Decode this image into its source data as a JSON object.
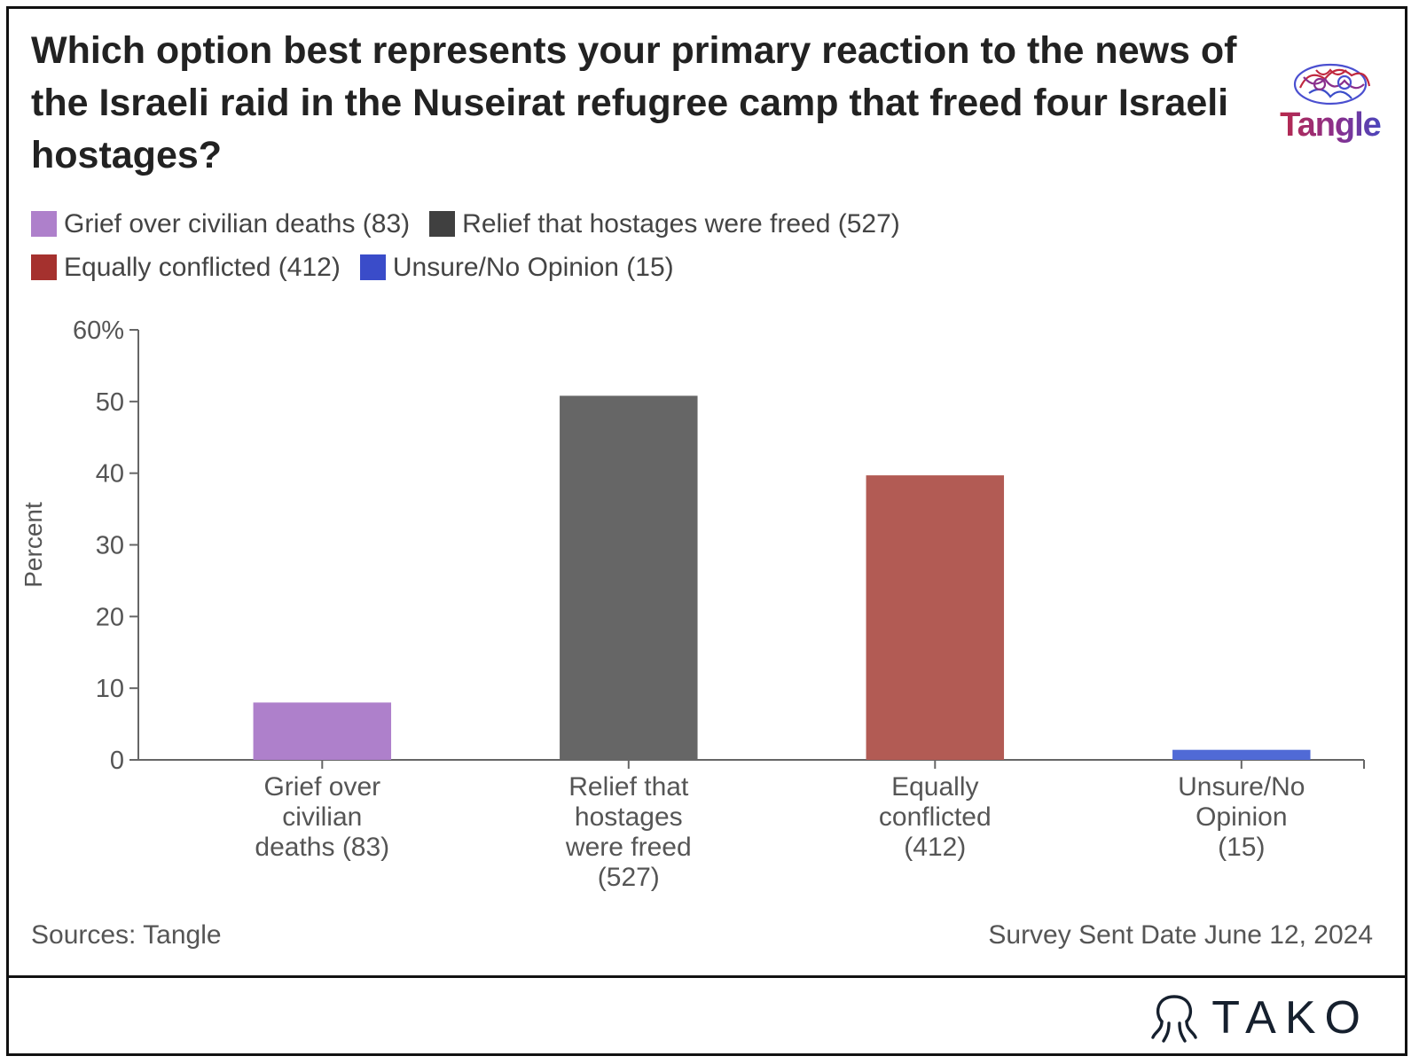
{
  "title": "Which option best represents your primary reaction to the news of the Israeli raid in the Nuseirat refugree camp that freed four Israeli hostages?",
  "brand": {
    "name": "Tangle",
    "icon": "brain-icon"
  },
  "legend": [
    {
      "label": "Grief over civilian deaths (83)",
      "color": "#ae80cb"
    },
    {
      "label": "Relief that hostages were freed (527)",
      "color": "#404040"
    },
    {
      "label": "Equally conflicted (412)",
      "color": "#a5312e"
    },
    {
      "label": "Unsure/No Opinion (15)",
      "color": "#3a4cc9"
    }
  ],
  "chart_data": {
    "type": "bar",
    "title": "Which option best represents your primary reaction to the news of the Israeli raid in the Nuseirat refugree camp that freed four Israeli hostages?",
    "ylabel": "Percent",
    "ylim": [
      0,
      60
    ],
    "yticks": [
      "0",
      "10",
      "20",
      "30",
      "40",
      "50",
      "60%"
    ],
    "categories": [
      [
        "Grief over",
        "civilian",
        "deaths (83)"
      ],
      [
        "Relief that",
        "hostages",
        "were freed",
        "(527)"
      ],
      [
        "Equally",
        "conflicted",
        "(412)"
      ],
      [
        "Unsure/No",
        "Opinion",
        "(15)"
      ]
    ],
    "values": [
      8.0,
      50.8,
      39.7,
      1.4
    ],
    "colors": [
      "#ae80cb",
      "#666666",
      "#b25b54",
      "#506ad6"
    ],
    "grid": false,
    "legend_position": "top-left"
  },
  "footer": {
    "source": "Sources: Tangle",
    "date": "Survey Sent Date June 12, 2024",
    "brand": "TAKO",
    "brand_icon": "octopus-icon"
  }
}
